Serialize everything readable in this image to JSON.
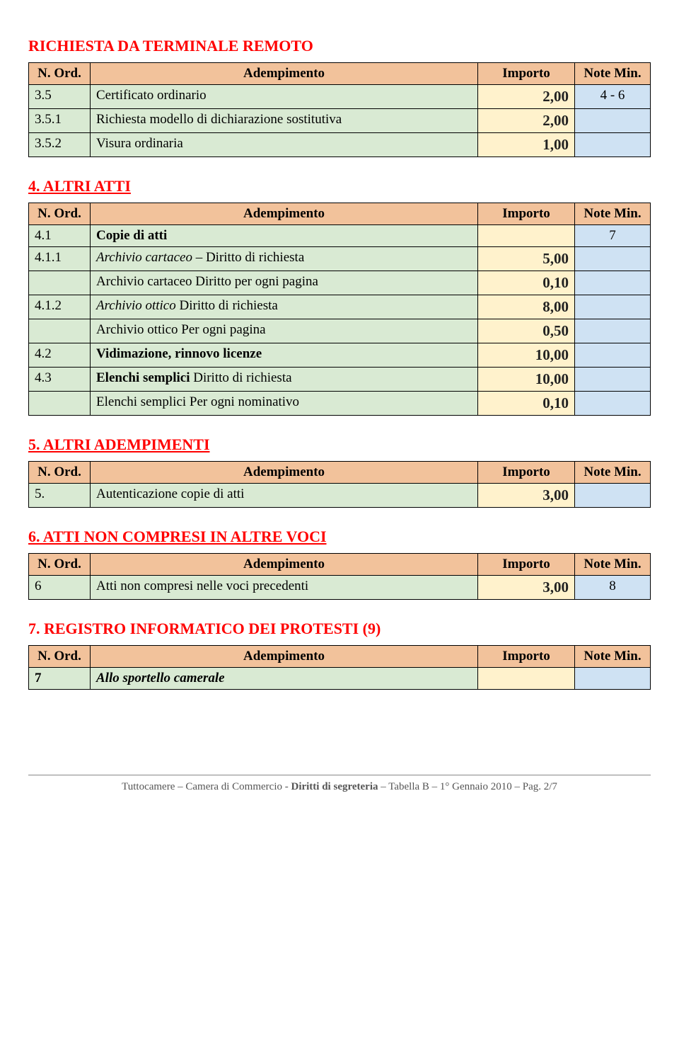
{
  "sections": {
    "remote": {
      "title": "RICHIESTA DA TERMINALE REMOTO"
    },
    "altri_atti": {
      "title": "4. ALTRI ATTI"
    },
    "altri_adempimenti": {
      "title": "5. ALTRI ADEMPIMENTI"
    },
    "non_compresi": {
      "title": "6. ATTI NON COMPRESI IN ALTRE VOCI"
    },
    "protesti": {
      "title": "7. REGISTRO INFORMATICO DEI PROTESTI",
      "suffix": " (9)"
    }
  },
  "headers": {
    "ord": "N. Ord.",
    "ade": "Adempimento",
    "imp": "Importo",
    "note": "Note Min."
  },
  "tables": {
    "remote": [
      {
        "ord": "3.5",
        "ade": "Certificato ordinario",
        "imp": "2,00",
        "note": "4 - 6"
      },
      {
        "ord": "3.5.1",
        "ade": "Richiesta modello di dichiarazione sostitutiva",
        "imp": "2,00",
        "note": ""
      },
      {
        "ord": "3.5.2",
        "ade": "Visura ordinaria",
        "imp": "1,00",
        "note": ""
      }
    ],
    "altri_atti": [
      {
        "ord": "4.1",
        "ade": "Copie di atti",
        "imp": "",
        "note": "7",
        "bold": true
      },
      {
        "ord": "4.1.1",
        "ade_pre": "Archivio cartaceo",
        "ade_post": " – Diritto di richiesta",
        "imp": "5,00",
        "note": "",
        "italic_pre": true
      },
      {
        "ord": "",
        "ade": "Archivio cartaceo Diritto per ogni pagina",
        "imp": "0,10",
        "note": ""
      },
      {
        "ord": "4.1.2",
        "ade_pre": "Archivio ottico",
        "ade_post": " Diritto di richiesta",
        "imp": "8,00",
        "note": "",
        "italic_pre": true
      },
      {
        "ord": "",
        "ade": "Archivio ottico Per ogni pagina",
        "imp": "0,50",
        "note": ""
      },
      {
        "ord": "4.2",
        "ade": "Vidimazione, rinnovo licenze",
        "imp": "10,00",
        "note": "",
        "bold": true
      },
      {
        "ord": "4.3",
        "ade_pre": "Elenchi semplici",
        "ade_post": " Diritto di richiesta",
        "imp": "10,00",
        "note": "",
        "bold_pre": true
      },
      {
        "ord": "",
        "ade": "Elenchi semplici Per ogni nominativo",
        "imp": "0,10",
        "note": ""
      }
    ],
    "altri_adempimenti": [
      {
        "ord": "5.",
        "ade": "Autenticazione copie di atti",
        "imp": "3,00",
        "note": ""
      }
    ],
    "non_compresi": [
      {
        "ord": "6",
        "ade": "Atti non compresi nelle voci precedenti",
        "imp": "3,00",
        "note": "8"
      }
    ],
    "protesti": [
      {
        "ord": "7",
        "ade": "Allo sportello camerale",
        "imp": "",
        "note": "",
        "bold_ord": true,
        "italic_ade": true,
        "bold_ade": true
      }
    ]
  },
  "footer": "Tuttocamere – Camera di Commercio - Diritti di segreteria – Tabella B – 1° Gennaio 2010 – Pag. 2/7",
  "footer_bold": "Diritti di segreteria",
  "colors": {
    "header_bg": "#f2c29b",
    "ord_bg": "#d9ead3",
    "ade_bg": "#d9ead3",
    "imp_bg": "#fff2cc",
    "note_bg": "#cfe2f3",
    "title_color": "#ff0000"
  }
}
